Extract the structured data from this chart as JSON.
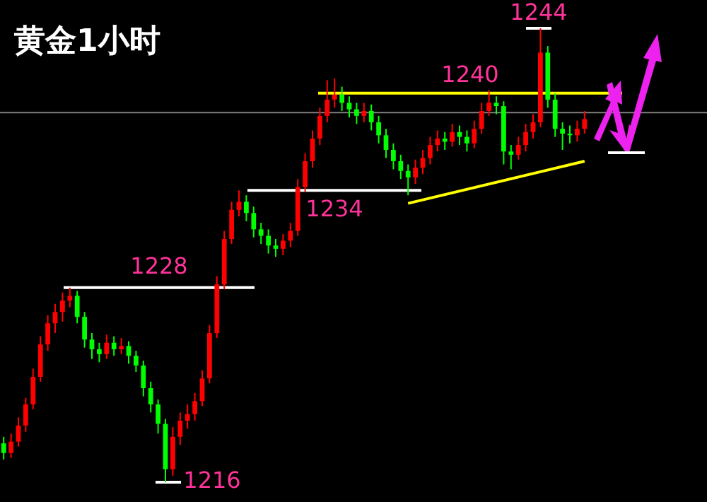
{
  "chart_data": {
    "type": "candlestick",
    "title": "黄金1小时",
    "tick_labels": false,
    "categories": [
      null,
      null,
      null,
      null,
      null,
      null,
      null,
      null,
      null,
      null,
      null,
      null,
      null,
      null,
      null,
      null,
      null,
      null,
      null,
      null,
      null,
      null,
      null,
      null,
      null,
      null,
      null,
      null,
      null,
      null,
      null,
      null,
      null,
      null,
      null,
      null,
      null,
      null,
      null,
      null,
      null,
      null,
      null,
      null,
      null,
      null,
      null,
      null,
      null,
      null,
      null,
      null,
      null,
      null,
      null,
      null,
      null,
      null,
      null,
      null,
      null,
      null,
      null,
      null,
      null,
      null,
      null,
      null,
      null,
      null,
      null,
      null,
      null,
      null,
      null,
      null,
      null,
      null,
      null,
      null
    ],
    "ohlc": [
      [
        1218.4,
        1218.8,
        1217.4,
        1217.8
      ],
      [
        1217.8,
        1219.0,
        1217.5,
        1218.5
      ],
      [
        1218.5,
        1220.0,
        1218.2,
        1219.5
      ],
      [
        1219.5,
        1221.2,
        1219.1,
        1220.8
      ],
      [
        1220.8,
        1223.0,
        1220.5,
        1222.5
      ],
      [
        1222.5,
        1225.0,
        1222.2,
        1224.5
      ],
      [
        1224.5,
        1226.3,
        1224.1,
        1225.8
      ],
      [
        1225.8,
        1227.0,
        1225.2,
        1226.5
      ],
      [
        1226.5,
        1227.7,
        1225.9,
        1227.2
      ],
      [
        1227.2,
        1228.0,
        1226.8,
        1227.5
      ],
      [
        1227.5,
        1227.8,
        1225.8,
        1226.2
      ],
      [
        1226.2,
        1226.5,
        1224.3,
        1224.8
      ],
      [
        1224.8,
        1225.2,
        1223.6,
        1224.2
      ],
      [
        1224.2,
        1224.6,
        1223.4,
        1223.9
      ],
      [
        1223.9,
        1225.1,
        1223.6,
        1224.6
      ],
      [
        1224.6,
        1225.0,
        1223.8,
        1224.2
      ],
      [
        1224.2,
        1224.9,
        1223.9,
        1224.4
      ],
      [
        1224.4,
        1224.7,
        1223.3,
        1223.8
      ],
      [
        1223.8,
        1224.1,
        1222.8,
        1223.2
      ],
      [
        1223.2,
        1223.5,
        1221.3,
        1221.8
      ],
      [
        1221.8,
        1222.2,
        1220.3,
        1220.8
      ],
      [
        1220.8,
        1221.1,
        1219.0,
        1219.6
      ],
      [
        1219.6,
        1219.9,
        1216.0,
        1216.8
      ],
      [
        1216.8,
        1219.4,
        1216.4,
        1218.8
      ],
      [
        1218.8,
        1220.3,
        1218.3,
        1219.8
      ],
      [
        1219.8,
        1220.8,
        1219.3,
        1220.2
      ],
      [
        1220.2,
        1221.5,
        1219.8,
        1221.0
      ],
      [
        1221.0,
        1222.9,
        1220.7,
        1222.4
      ],
      [
        1222.4,
        1225.7,
        1222.1,
        1225.2
      ],
      [
        1225.2,
        1228.7,
        1224.9,
        1228.2
      ],
      [
        1228.2,
        1231.5,
        1227.9,
        1231.0
      ],
      [
        1231.0,
        1233.3,
        1230.7,
        1232.8
      ],
      [
        1232.8,
        1234.0,
        1232.4,
        1233.3
      ],
      [
        1233.3,
        1233.7,
        1232.1,
        1232.6
      ],
      [
        1232.6,
        1233.0,
        1231.1,
        1231.6
      ],
      [
        1231.6,
        1232.0,
        1230.7,
        1231.2
      ],
      [
        1231.2,
        1231.6,
        1230.1,
        1230.6
      ],
      [
        1230.6,
        1231.0,
        1229.9,
        1230.4
      ],
      [
        1230.4,
        1231.3,
        1230.0,
        1230.9
      ],
      [
        1230.9,
        1232.0,
        1230.5,
        1231.5
      ],
      [
        1231.5,
        1234.7,
        1231.2,
        1234.2
      ],
      [
        1234.2,
        1236.3,
        1233.9,
        1235.8
      ],
      [
        1235.8,
        1237.7,
        1235.4,
        1237.2
      ],
      [
        1237.2,
        1239.1,
        1236.8,
        1238.6
      ],
      [
        1238.6,
        1240.8,
        1238.2,
        1239.6
      ],
      [
        1239.6,
        1240.9,
        1239.1,
        1239.9
      ],
      [
        1239.9,
        1240.4,
        1238.9,
        1239.4
      ],
      [
        1239.4,
        1239.8,
        1238.5,
        1239.0
      ],
      [
        1239.0,
        1239.4,
        1238.1,
        1238.6
      ],
      [
        1238.6,
        1239.4,
        1238.2,
        1238.9
      ],
      [
        1238.9,
        1239.3,
        1237.7,
        1238.2
      ],
      [
        1238.2,
        1238.6,
        1236.9,
        1237.4
      ],
      [
        1237.4,
        1237.8,
        1236.0,
        1236.5
      ],
      [
        1236.5,
        1236.9,
        1235.3,
        1235.8
      ],
      [
        1235.8,
        1236.2,
        1234.7,
        1235.2
      ],
      [
        1235.2,
        1235.6,
        1233.7,
        1234.8
      ],
      [
        1234.8,
        1235.9,
        1234.4,
        1235.4
      ],
      [
        1235.4,
        1236.5,
        1235.0,
        1236.0
      ],
      [
        1236.0,
        1237.3,
        1235.6,
        1236.8
      ],
      [
        1236.8,
        1237.7,
        1236.4,
        1237.2
      ],
      [
        1237.2,
        1237.6,
        1236.5,
        1237.0
      ],
      [
        1237.0,
        1238.1,
        1236.7,
        1237.6
      ],
      [
        1237.6,
        1238.0,
        1236.8,
        1237.3
      ],
      [
        1237.3,
        1237.7,
        1236.4,
        1236.9
      ],
      [
        1236.9,
        1238.3,
        1236.6,
        1237.8
      ],
      [
        1237.8,
        1239.4,
        1237.5,
        1238.9
      ],
      [
        1238.9,
        1240.2,
        1238.6,
        1239.4
      ],
      [
        1239.4,
        1239.8,
        1238.7,
        1239.2
      ],
      [
        1239.2,
        1239.5,
        1235.6,
        1236.4
      ],
      [
        1236.4,
        1236.8,
        1235.3,
        1236.2
      ],
      [
        1236.2,
        1237.3,
        1235.9,
        1236.8
      ],
      [
        1236.8,
        1238.1,
        1236.4,
        1237.6
      ],
      [
        1237.6,
        1238.7,
        1237.2,
        1238.2
      ],
      [
        1238.2,
        1244.0,
        1237.9,
        1242.5
      ],
      [
        1242.5,
        1242.9,
        1239.1,
        1239.6
      ],
      [
        1239.6,
        1240.0,
        1237.3,
        1237.8
      ],
      [
        1237.8,
        1238.2,
        1236.5,
        1237.5
      ],
      [
        1237.5,
        1238.0,
        1236.9,
        1237.4
      ],
      [
        1237.4,
        1238.3,
        1237.0,
        1237.8
      ],
      [
        1237.8,
        1238.9,
        1237.5,
        1238.4
      ]
    ],
    "colors": [
      "#00ff00",
      "#ff0000",
      "#ff0000",
      "#ff0000",
      "#ff0000",
      "#ff0000",
      "#ff0000",
      "#ff0000",
      "#ff0000",
      "#ff0000",
      "#00ff00",
      "#00ff00",
      "#00ff00",
      "#00ff00",
      "#ff0000",
      "#00ff00",
      "#ff0000",
      "#00ff00",
      "#00ff00",
      "#00ff00",
      "#00ff00",
      "#00ff00",
      "#00ff00",
      "#ff0000",
      "#ff0000",
      "#ff0000",
      "#ff0000",
      "#ff0000",
      "#ff0000",
      "#ff0000",
      "#ff0000",
      "#ff0000",
      "#ff0000",
      "#00ff00",
      "#00ff00",
      "#00ff00",
      "#00ff00",
      "#00ff00",
      "#ff0000",
      "#ff0000",
      "#ff0000",
      "#ff0000",
      "#ff0000",
      "#ff0000",
      "#ff0000",
      "#ff0000",
      "#00ff00",
      "#00ff00",
      "#00ff00",
      "#ff0000",
      "#00ff00",
      "#00ff00",
      "#00ff00",
      "#00ff00",
      "#00ff00",
      "#00ff00",
      "#ff0000",
      "#ff0000",
      "#ff0000",
      "#ff0000",
      "#00ff00",
      "#ff0000",
      "#00ff00",
      "#00ff00",
      "#ff0000",
      "#ff0000",
      "#ff0000",
      "#00ff00",
      "#00ff00",
      "#00ff00",
      "#ff0000",
      "#ff0000",
      "#ff0000",
      "#ff0000",
      "#00ff00",
      "#00ff00",
      "#00ff00",
      "#00ff00",
      "#ff0000",
      "#ff0000"
    ],
    "series": [
      {
        "type": "line",
        "color": "#ffff00",
        "values": [
          null,
          null,
          null,
          null,
          null,
          null,
          null,
          null,
          null,
          null,
          null,
          null,
          null,
          null,
          null,
          null,
          null,
          null,
          null,
          null,
          null,
          null,
          null,
          null,
          null,
          null,
          null,
          null,
          null,
          null,
          null,
          null,
          null,
          null,
          null,
          null,
          null,
          null,
          null,
          null,
          null,
          null,
          null,
          null,
          null,
          null,
          null,
          null,
          null,
          null,
          null,
          null,
          null,
          null,
          null,
          1233.2,
          null,
          null,
          null,
          null,
          null,
          null,
          null,
          null,
          null,
          null,
          null,
          null,
          null,
          null,
          null,
          null,
          null,
          null,
          null,
          null,
          null,
          null,
          null,
          1235.8
        ]
      }
    ],
    "ref_lines": [
      {
        "axis": "y",
        "value": 1228,
        "label": "1228",
        "color": "#ffffff"
      },
      {
        "axis": "y",
        "value": 1234,
        "label": "1234",
        "color": "#ffffff"
      },
      {
        "axis": "y",
        "value": 1240,
        "label": "1240",
        "color": "#ffff00"
      },
      {
        "axis": "y",
        "value": 1244,
        "label": "1244",
        "color": "#ffffff"
      },
      {
        "axis": "y",
        "value": 1216,
        "label": "1216",
        "color": "#ffffff"
      },
      {
        "axis": "y",
        "value": 1238.8,
        "color": "#808080"
      }
    ],
    "marker": "none"
  }
}
